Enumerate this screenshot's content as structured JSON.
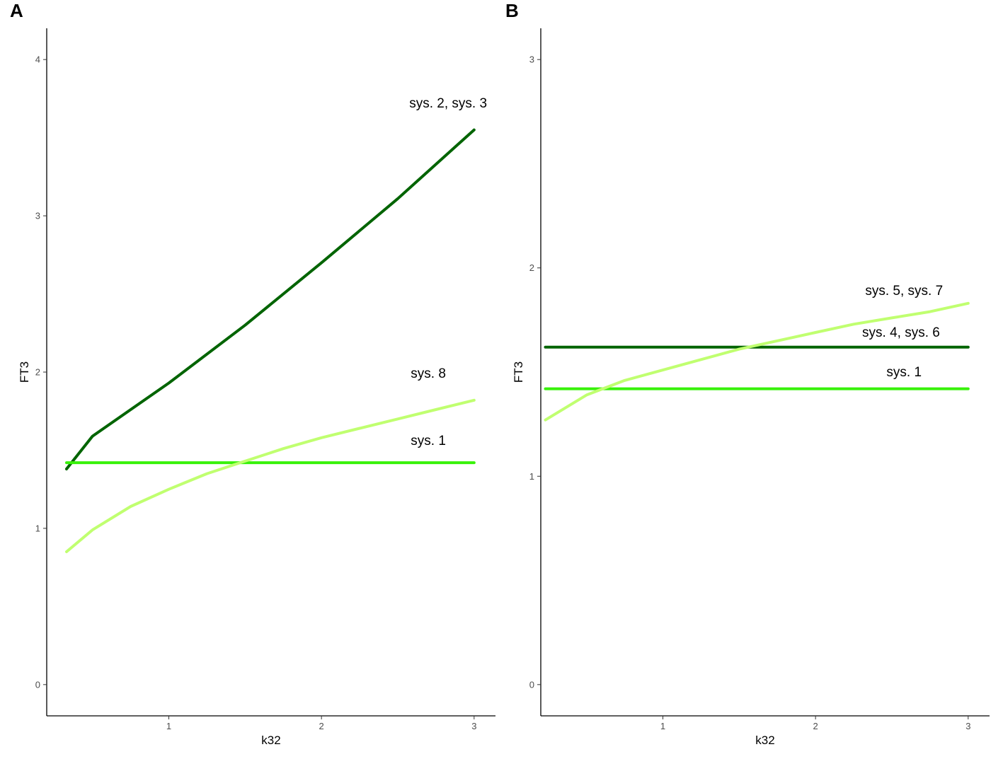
{
  "chart_data": [
    {
      "panel_label": "A",
      "type": "line",
      "xlabel": "k32",
      "ylabel": "FT3",
      "xlim": [
        0.2,
        3.14
      ],
      "ylim": [
        -0.2,
        4.2
      ],
      "xticks": [
        1,
        2,
        3
      ],
      "yticks": [
        0,
        1,
        2,
        3,
        4
      ],
      "grid": false,
      "series": [
        {
          "color": "#006400",
          "x": [
            0.33,
            0.5,
            1.0,
            1.5,
            2.0,
            2.5,
            3.0
          ],
          "y": [
            1.38,
            1.59,
            1.93,
            2.3,
            2.7,
            3.11,
            3.55
          ]
        },
        {
          "color": "#38f20a",
          "x": [
            0.33,
            3.0
          ],
          "y": [
            1.42,
            1.42
          ]
        },
        {
          "color": "#c0ff70",
          "x": [
            0.33,
            0.5,
            0.75,
            1.0,
            1.25,
            1.5,
            1.75,
            2.0,
            2.25,
            2.5,
            2.75,
            3.0
          ],
          "y": [
            0.85,
            0.99,
            1.14,
            1.25,
            1.35,
            1.43,
            1.51,
            1.58,
            1.64,
            1.7,
            1.76,
            1.82
          ]
        }
      ],
      "annotations": [
        {
          "text": "sys. 2, sys. 3",
          "x": 2.83,
          "y": 3.72
        },
        {
          "text": "sys. 8",
          "x": 2.7,
          "y": 1.99
        },
        {
          "text": "sys. 1",
          "x": 2.7,
          "y": 1.56
        }
      ]
    },
    {
      "panel_label": "B",
      "type": "line",
      "xlabel": "k32",
      "ylabel": "FT3",
      "xlim": [
        0.2,
        3.14
      ],
      "ylim": [
        -0.15,
        3.15
      ],
      "xticks": [
        1,
        2,
        3
      ],
      "yticks": [
        0,
        1,
        2,
        3
      ],
      "grid": false,
      "series": [
        {
          "color": "#006400",
          "x": [
            0.23,
            3.0
          ],
          "y": [
            1.62,
            1.62
          ]
        },
        {
          "color": "#38f20a",
          "x": [
            0.23,
            3.0
          ],
          "y": [
            1.42,
            1.42
          ]
        },
        {
          "color": "#c0ff70",
          "x": [
            0.23,
            0.5,
            0.75,
            1.0,
            1.25,
            1.5,
            1.75,
            2.0,
            2.25,
            2.5,
            2.75,
            3.0
          ],
          "y": [
            1.27,
            1.39,
            1.46,
            1.51,
            1.56,
            1.61,
            1.65,
            1.69,
            1.73,
            1.76,
            1.79,
            1.83
          ]
        }
      ],
      "annotations": [
        {
          "text": "sys. 5, sys. 7",
          "x": 2.58,
          "y": 1.89
        },
        {
          "text": "sys. 4, sys. 6",
          "x": 2.56,
          "y": 1.69
        },
        {
          "text": "sys. 1",
          "x": 2.58,
          "y": 1.5
        }
      ]
    }
  ]
}
